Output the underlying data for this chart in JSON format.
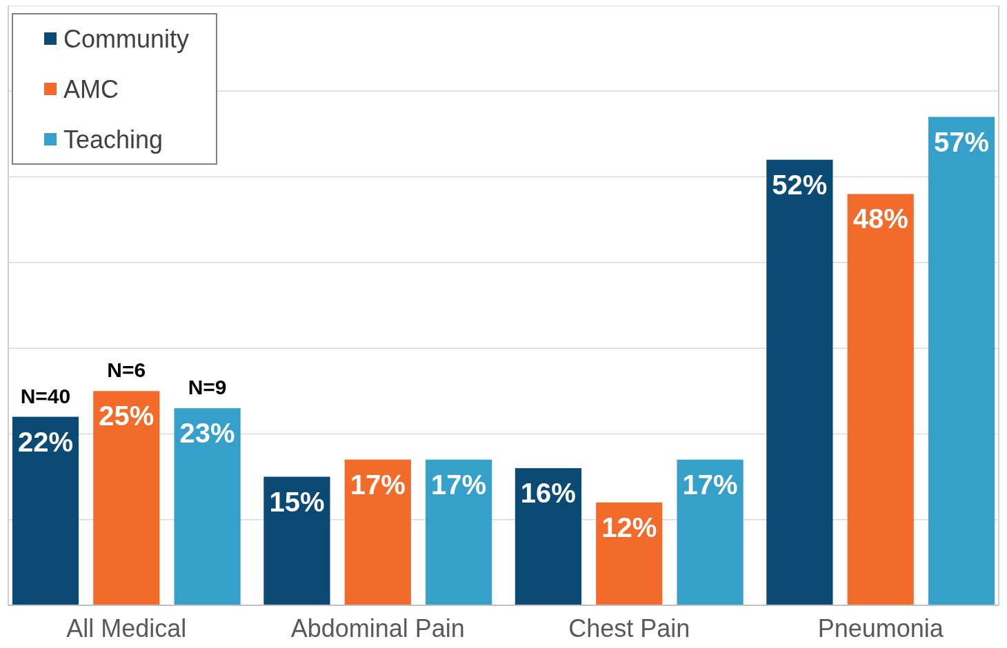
{
  "chart_data": {
    "type": "bar",
    "categories": [
      "All Medical",
      "Abdominal Pain",
      "Chest Pain",
      "Pneumonia"
    ],
    "series": [
      {
        "name": "Community",
        "color": "#0b4a74",
        "values": [
          22,
          15,
          16,
          52
        ],
        "value_labels": [
          "22%",
          "15%",
          "16%",
          "52%"
        ]
      },
      {
        "name": "AMC",
        "color": "#f26b2a",
        "values": [
          25,
          17,
          12,
          48
        ],
        "value_labels": [
          "25%",
          "17%",
          "12%",
          "48%"
        ]
      },
      {
        "name": "Teaching",
        "color": "#35a0c9",
        "values": [
          23,
          17,
          17,
          57
        ],
        "value_labels": [
          "23%",
          "17%",
          "17%",
          "57%"
        ]
      }
    ],
    "ylim": [
      0,
      70
    ],
    "yticks": [
      {
        "value": 0,
        "label": null
      },
      {
        "value": 10,
        "label": null
      },
      {
        "value": 20,
        "label": null
      },
      {
        "value": 30,
        "label": null
      },
      {
        "value": 40,
        "label": null
      },
      {
        "value": 50,
        "label": null
      },
      {
        "value": 60,
        "label": null
      },
      {
        "value": 70,
        "label": null
      }
    ],
    "tick_labels": "x",
    "grid": "y",
    "legend": "top left",
    "annotations": [
      "N=40",
      "N=6",
      "N=9"
    ]
  }
}
